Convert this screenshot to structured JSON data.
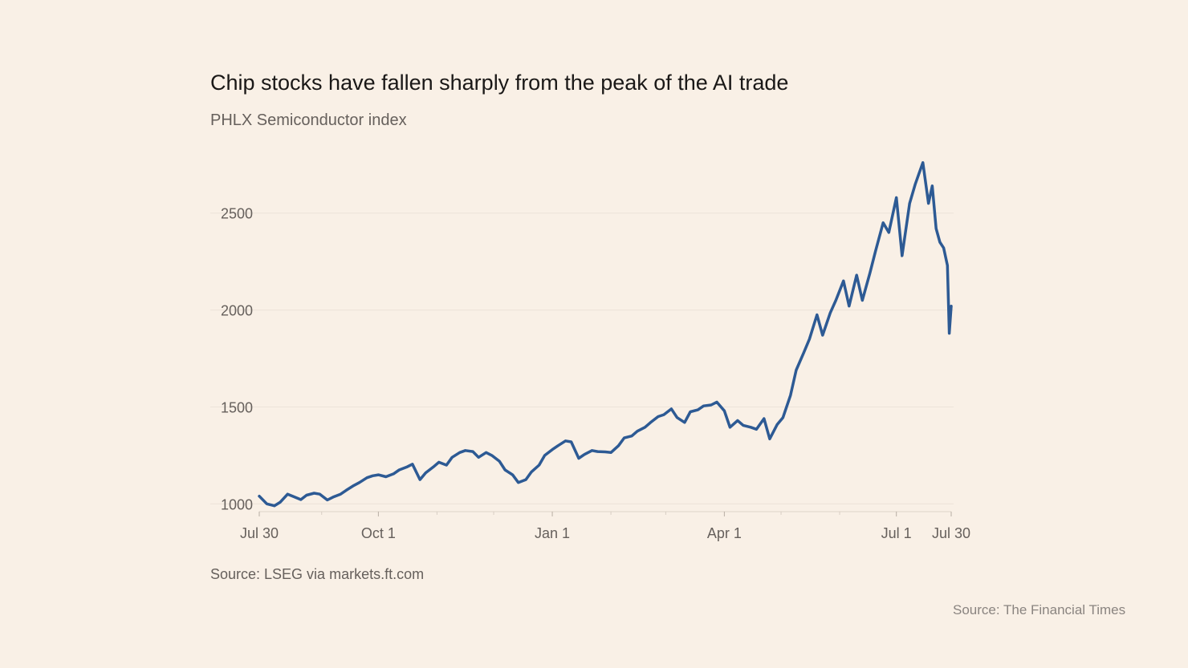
{
  "chart_data": {
    "type": "line",
    "title": "Chip stocks have fallen sharply from the peak of the AI trade",
    "subtitle": "PHLX Semiconductor index",
    "source": "Source: LSEG via markets.ft.com",
    "xlabel": "",
    "ylabel": "",
    "x_ticks": [
      "Jul 30",
      "Oct 1",
      "Jan 1",
      "Apr 1",
      "Jul 1",
      "Jul 30"
    ],
    "y_ticks": [
      "2500",
      "2000",
      "1500",
      "1000"
    ],
    "ylim": [
      960,
      2780
    ],
    "grid": "horizontal",
    "legend": "none",
    "series": [
      {
        "color": "#2d5a94",
        "points": [
          [
            "2023-07-30",
            1040
          ],
          [
            "2023-08-03",
            1000
          ],
          [
            "2023-08-07",
            990
          ],
          [
            "2023-08-10",
            1008
          ],
          [
            "2023-08-14",
            1050
          ],
          [
            "2023-08-17",
            1038
          ],
          [
            "2023-08-21",
            1022
          ],
          [
            "2023-08-24",
            1045
          ],
          [
            "2023-08-28",
            1055
          ],
          [
            "2023-08-31",
            1050
          ],
          [
            "2023-09-04",
            1020
          ],
          [
            "2023-09-07",
            1035
          ],
          [
            "2023-09-11",
            1050
          ],
          [
            "2023-09-14",
            1070
          ],
          [
            "2023-09-18",
            1095
          ],
          [
            "2023-09-21",
            1110
          ],
          [
            "2023-09-25",
            1135
          ],
          [
            "2023-09-28",
            1145
          ],
          [
            "2023-10-01",
            1150
          ],
          [
            "2023-10-05",
            1140
          ],
          [
            "2023-10-09",
            1155
          ],
          [
            "2023-10-12",
            1175
          ],
          [
            "2023-10-16",
            1190
          ],
          [
            "2023-10-19",
            1205
          ],
          [
            "2023-10-23",
            1125
          ],
          [
            "2023-10-26",
            1160
          ],
          [
            "2023-10-30",
            1190
          ],
          [
            "2023-11-02",
            1215
          ],
          [
            "2023-11-06",
            1200
          ],
          [
            "2023-11-09",
            1240
          ],
          [
            "2023-11-13",
            1265
          ],
          [
            "2023-11-16",
            1275
          ],
          [
            "2023-11-20",
            1270
          ],
          [
            "2023-11-23",
            1240
          ],
          [
            "2023-11-27",
            1265
          ],
          [
            "2023-11-30",
            1250
          ],
          [
            "2023-12-04",
            1220
          ],
          [
            "2023-12-07",
            1175
          ],
          [
            "2023-12-11",
            1150
          ],
          [
            "2023-12-14",
            1110
          ],
          [
            "2023-12-18",
            1125
          ],
          [
            "2023-12-21",
            1165
          ],
          [
            "2023-12-25",
            1200
          ],
          [
            "2023-12-28",
            1250
          ],
          [
            "2024-01-01",
            1280
          ],
          [
            "2024-01-04",
            1300
          ],
          [
            "2024-01-08",
            1325
          ],
          [
            "2024-01-11",
            1320
          ],
          [
            "2024-01-15",
            1235
          ],
          [
            "2024-01-18",
            1255
          ],
          [
            "2024-01-22",
            1275
          ],
          [
            "2024-01-25",
            1270
          ],
          [
            "2024-01-29",
            1268
          ],
          [
            "2024-02-01",
            1265
          ],
          [
            "2024-02-05",
            1300
          ],
          [
            "2024-02-08",
            1340
          ],
          [
            "2024-02-12",
            1350
          ],
          [
            "2024-02-15",
            1375
          ],
          [
            "2024-02-19",
            1395
          ],
          [
            "2024-02-22",
            1420
          ],
          [
            "2024-02-26",
            1450
          ],
          [
            "2024-02-29",
            1460
          ],
          [
            "2024-03-04",
            1490
          ],
          [
            "2024-03-07",
            1445
          ],
          [
            "2024-03-11",
            1420
          ],
          [
            "2024-03-14",
            1475
          ],
          [
            "2024-03-18",
            1485
          ],
          [
            "2024-03-21",
            1505
          ],
          [
            "2024-03-25",
            1510
          ],
          [
            "2024-03-28",
            1525
          ],
          [
            "2024-04-01",
            1480
          ],
          [
            "2024-04-04",
            1395
          ],
          [
            "2024-04-08",
            1430
          ],
          [
            "2024-04-11",
            1405
          ],
          [
            "2024-04-15",
            1395
          ],
          [
            "2024-04-18",
            1385
          ],
          [
            "2024-04-22",
            1440
          ],
          [
            "2024-04-25",
            1335
          ],
          [
            "2024-04-29",
            1410
          ],
          [
            "2024-05-02",
            1445
          ],
          [
            "2024-05-06",
            1560
          ],
          [
            "2024-05-09",
            1690
          ],
          [
            "2024-05-13",
            1780
          ],
          [
            "2024-05-16",
            1850
          ],
          [
            "2024-05-20",
            1975
          ],
          [
            "2024-05-23",
            1870
          ],
          [
            "2024-05-27",
            1985
          ],
          [
            "2024-05-30",
            2050
          ],
          [
            "2024-06-03",
            2150
          ],
          [
            "2024-06-06",
            2020
          ],
          [
            "2024-06-10",
            2180
          ],
          [
            "2024-06-13",
            2050
          ],
          [
            "2024-06-17",
            2190
          ],
          [
            "2024-06-20",
            2305
          ],
          [
            "2024-06-24",
            2450
          ],
          [
            "2024-06-27",
            2400
          ],
          [
            "2024-07-01",
            2580
          ],
          [
            "2024-07-04",
            2280
          ],
          [
            "2024-07-08",
            2550
          ],
          [
            "2024-07-11",
            2650
          ],
          [
            "2024-07-15",
            2760
          ],
          [
            "2024-07-18",
            2550
          ],
          [
            "2024-07-20",
            2640
          ],
          [
            "2024-07-22",
            2420
          ],
          [
            "2024-07-24",
            2350
          ],
          [
            "2024-07-26",
            2320
          ],
          [
            "2024-07-28",
            2230
          ],
          [
            "2024-07-29",
            1880
          ],
          [
            "2024-07-30",
            2020
          ]
        ]
      }
    ]
  },
  "attribution": "Source: The Financial Times"
}
